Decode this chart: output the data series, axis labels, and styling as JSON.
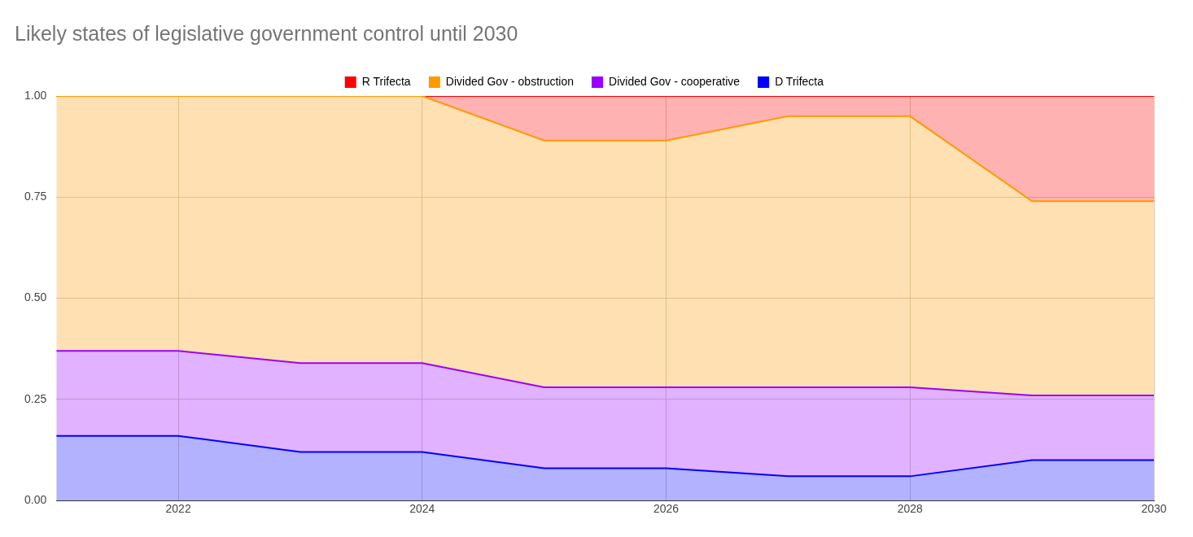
{
  "chart_data": {
    "type": "area",
    "title": "Likely states of legislative government control until 2030",
    "stacked": true,
    "x": [
      2021,
      2022,
      2023,
      2024,
      2025,
      2026,
      2027,
      2028,
      2029,
      2030
    ],
    "series": [
      {
        "name": "D Trifecta",
        "color": "#0000ff",
        "values": [
          0.16,
          0.16,
          0.12,
          0.12,
          0.08,
          0.08,
          0.06,
          0.06,
          0.1,
          0.1
        ]
      },
      {
        "name": "Divided Gov - cooperative",
        "color": "#9900ff",
        "values": [
          0.21,
          0.21,
          0.22,
          0.22,
          0.2,
          0.2,
          0.22,
          0.22,
          0.16,
          0.16
        ]
      },
      {
        "name": "Divided Gov - obstruction",
        "color": "#ff9900",
        "values": [
          0.63,
          0.63,
          0.66,
          0.66,
          0.61,
          0.61,
          0.67,
          0.67,
          0.48,
          0.48
        ]
      },
      {
        "name": "R Trifecta",
        "color": "#ff0000",
        "values": [
          0,
          0,
          0,
          0,
          0.11,
          0.11,
          0.05,
          0.05,
          0.26,
          0.26
        ]
      }
    ],
    "xlim": [
      2021,
      2030
    ],
    "xticks": [
      2022,
      2024,
      2026,
      2028,
      2030
    ],
    "ylim": [
      0,
      1
    ],
    "yticks": [
      {
        "value": 0,
        "label": "0.00"
      },
      {
        "value": 0.25,
        "label": "0.25"
      },
      {
        "value": 0.5,
        "label": "0.50"
      },
      {
        "value": 0.75,
        "label": "0.75"
      },
      {
        "value": 1,
        "label": "1.00"
      }
    ],
    "grid": true,
    "legend": "top"
  }
}
